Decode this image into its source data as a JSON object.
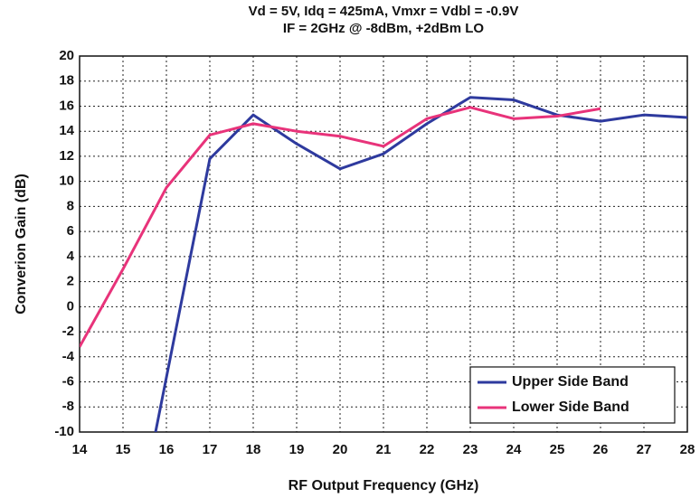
{
  "chart_data": {
    "type": "line",
    "title": [
      "Vd = 5V, Idq = 425mA, Vmxr = Vdbl = -0.9V",
      "IF = 2GHz @ -8dBm, +2dBm LO"
    ],
    "x_label": "RF Output Frequency (GHz)",
    "y_label": "Converion Gain (dB)",
    "xlim": [
      14,
      28
    ],
    "ylim": [
      -10,
      20
    ],
    "xticks": [
      14,
      15,
      16,
      17,
      18,
      19,
      20,
      21,
      22,
      23,
      24,
      25,
      26,
      27,
      28
    ],
    "yticks": [
      -10,
      -8,
      -6,
      -4,
      -2,
      0,
      2,
      4,
      6,
      8,
      10,
      12,
      14,
      16,
      18,
      20
    ],
    "grid": true,
    "legend": "lower right",
    "series": [
      {
        "name": "Upper Side Band",
        "color": "#2e3a9e",
        "x": [
          15.75,
          17,
          18,
          19,
          20,
          21,
          22,
          23,
          24,
          25,
          26,
          27,
          28
        ],
        "values": [
          -10,
          11.8,
          15.3,
          13,
          11,
          12.2,
          14.6,
          16.7,
          16.5,
          15.3,
          14.8,
          15.3,
          15.1
        ]
      },
      {
        "name": "Lower Side Band",
        "color": "#e8337a",
        "x": [
          14,
          15,
          16,
          17,
          18,
          19,
          20,
          21,
          22,
          23,
          24,
          25,
          26
        ],
        "values": [
          -3.2,
          3,
          9.5,
          13.7,
          14.6,
          14,
          13.6,
          12.8,
          15,
          15.9,
          15,
          15.2,
          15.8
        ]
      }
    ]
  }
}
